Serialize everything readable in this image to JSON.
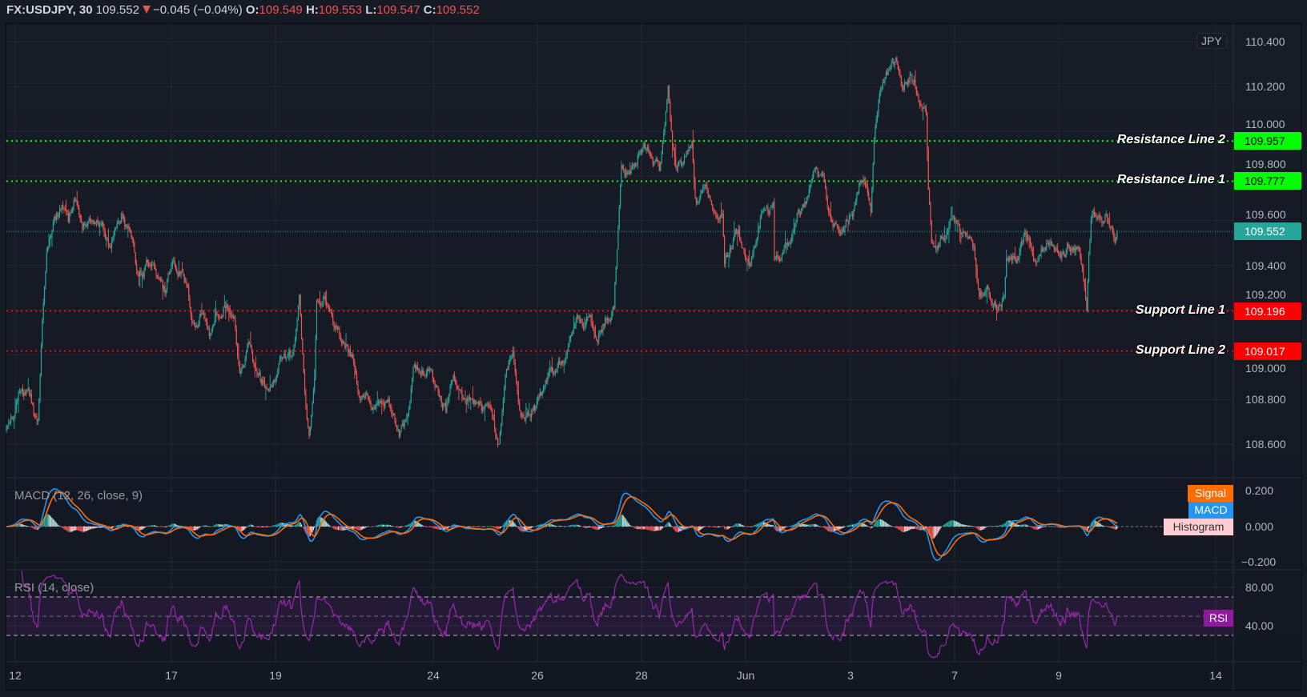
{
  "header": {
    "symbol": "FX:USDJPY, 30",
    "last": "109.552",
    "direction": "down",
    "change": "−0.045 (−0.04%)",
    "o_label": "O:",
    "o": "109.549",
    "h_label": "H:",
    "h": "109.553",
    "l_label": "L:",
    "l": "109.547",
    "c_label": "C:",
    "c": "109.552"
  },
  "price_axis": {
    "currency": "JPY",
    "ticks": [
      "110.400",
      "110.200",
      "110.000",
      "109.800",
      "109.600",
      "109.400",
      "109.200",
      "109.000",
      "108.800",
      "108.600"
    ]
  },
  "current_price": {
    "value": "109.552",
    "color": "#26a69a"
  },
  "levels": [
    {
      "name": "Resistance Line 2",
      "price": "109.957",
      "color": "#00ff00",
      "text_color": "#000000"
    },
    {
      "name": "Resistance Line 1",
      "price": "109.777",
      "color": "#00ff00",
      "text_color": "#000000"
    },
    {
      "name": "Support Line 1",
      "price": "109.196",
      "color": "#ff0000",
      "text_color": "#ffffff"
    },
    {
      "name": "Support Line 2",
      "price": "109.017",
      "color": "#ff0000",
      "text_color": "#ffffff"
    }
  ],
  "macd": {
    "title": "MACD (12, 26, close, 9)",
    "signal_label": "Signal",
    "macd_label": "MACD",
    "histogram_label": "Histogram",
    "axis": [
      "0.200",
      "0.000",
      "−0.200"
    ],
    "colors": {
      "macd": "#2196f3",
      "signal": "#ff6d00",
      "hist_up": "#26a69a",
      "hist_up_fade": "#b2dfdb",
      "hist_down": "#ef5350",
      "hist_down_fade": "#ffcdd2"
    }
  },
  "rsi": {
    "title": "RSI (14, close)",
    "label": "RSI",
    "axis": [
      "80.00",
      "40.00"
    ],
    "upper_band": 70,
    "middle_band": 50,
    "lower_band": 30,
    "color": "#9c27b0"
  },
  "time_axis": [
    "12",
    "17",
    "19",
    "24",
    "26",
    "28",
    "Jun",
    "3",
    "7",
    "9",
    "14"
  ],
  "chart_data": {
    "type": "candlestick",
    "title": "FX:USDJPY, 30",
    "interval": "30",
    "ylim": [
      108.45,
      110.48
    ],
    "macd_ylim": [
      -0.243,
      0.274
    ],
    "rsi_ylim": [
      2.5,
      98.3
    ],
    "grid": true,
    "colors": {
      "up": "#26a69a",
      "down": "#ef5350"
    },
    "approx_close_path": [
      [
        "May 11 20:00",
        108.66
      ],
      [
        "May 12 00:30",
        108.79
      ],
      [
        "May 12 03:00",
        108.88
      ],
      [
        "May 12 07:00",
        108.79
      ],
      [
        "May 12 10:30",
        108.68
      ],
      [
        "May 12 12:30",
        109.18
      ],
      [
        "May 12 14:30",
        109.44
      ],
      [
        "May 12 16:30",
        109.57
      ],
      [
        "May 12 22:00",
        109.67
      ],
      [
        "May 13 00:30",
        109.57
      ],
      [
        "May 13 04:00",
        109.72
      ],
      [
        "May 13 07:00",
        109.57
      ],
      [
        "May 13 11:00",
        109.63
      ],
      [
        "May 13 16:00",
        109.57
      ],
      [
        "May 13 20:00",
        109.44
      ],
      [
        "May 14 01:00",
        109.63
      ],
      [
        "May 14 06:00",
        109.49
      ],
      [
        "May 14 08:30",
        109.33
      ],
      [
        "May 14 15:00",
        109.44
      ],
      [
        "May 14 21:30",
        109.28
      ],
      [
        "May 17 01:00",
        109.44
      ],
      [
        "May 17 06:30",
        109.33
      ],
      [
        "May 17 10:00",
        109.15
      ],
      [
        "May 17 15:00",
        109.2
      ],
      [
        "May 17 17:30",
        109.11
      ],
      [
        "May 18 00:00",
        109.23
      ],
      [
        "May 18 05:00",
        109.18
      ],
      [
        "May 18 07:30",
        108.92
      ],
      [
        "May 18 11:30",
        109.01
      ],
      [
        "May 18 15:00",
        108.92
      ],
      [
        "May 18 19:00",
        108.87
      ],
      [
        "May 19 00:00",
        108.92
      ],
      [
        "May 19 02:30",
        109.02
      ],
      [
        "May 19 07:30",
        108.98
      ],
      [
        "May 19 11:00",
        109.24
      ],
      [
        "May 19 13:30",
        108.85
      ],
      [
        "May 19 15:30",
        108.63
      ],
      [
        "May 19 18:00",
        108.92
      ],
      [
        "May 19 19:00",
        109.24
      ],
      [
        "May 20 00:30",
        109.24
      ],
      [
        "May 20 03:00",
        109.13
      ],
      [
        "May 20 07:30",
        109.05
      ],
      [
        "May 20 12:00",
        108.98
      ],
      [
        "May 20 14:30",
        108.81
      ],
      [
        "May 20 20:30",
        108.78
      ],
      [
        "May 21 00:30",
        108.84
      ],
      [
        "May 21 05:30",
        108.75
      ],
      [
        "May 21 09:00",
        108.66
      ],
      [
        "May 21 13:00",
        108.71
      ],
      [
        "May 21 15:30",
        108.94
      ],
      [
        "May 21 20:30",
        108.92
      ],
      [
        "May 24 00:00",
        108.91
      ],
      [
        "May 24 06:30",
        108.75
      ],
      [
        "May 24 10:00",
        108.94
      ],
      [
        "May 24 15:00",
        108.76
      ],
      [
        "May 24 21:30",
        108.8
      ],
      [
        "May 25 02:30",
        108.72
      ],
      [
        "May 25 07:00",
        108.61
      ],
      [
        "May 25 10:30",
        108.94
      ],
      [
        "May 25 13:30",
        109.03
      ],
      [
        "May 25 17:30",
        108.74
      ],
      [
        "May 26 00:00",
        108.76
      ],
      [
        "May 26 06:30",
        108.88
      ],
      [
        "May 26 13:30",
        109.02
      ],
      [
        "May 26 18:00",
        109.16
      ],
      [
        "May 27 00:30",
        109.18
      ],
      [
        "May 27 04:00",
        109.07
      ],
      [
        "May 27 09:00",
        109.18
      ],
      [
        "May 27 12:00",
        109.24
      ],
      [
        "May 27 13:30",
        109.5
      ],
      [
        "May 27 15:30",
        109.85
      ],
      [
        "May 27 19:30",
        109.78
      ],
      [
        "May 28 00:30",
        109.93
      ],
      [
        "May 28 05:30",
        109.87
      ],
      [
        "May 28 09:00",
        109.83
      ],
      [
        "May 28 12:00",
        110.09
      ],
      [
        "May 28 13:00",
        110.19
      ],
      [
        "May 28 15:00",
        109.93
      ],
      [
        "May 28 17:00",
        109.79
      ],
      [
        "May 28 21:00",
        109.87
      ],
      [
        "May 31 00:00",
        109.93
      ],
      [
        "May 31 01:30",
        109.7
      ],
      [
        "May 31 03:00",
        109.66
      ],
      [
        "May 31 06:30",
        109.75
      ],
      [
        "May 31 09:30",
        109.67
      ],
      [
        "May 31 14:00",
        109.63
      ],
      [
        "May 31 15:00",
        109.41
      ],
      [
        "May 31 17:30",
        109.49
      ],
      [
        "May 31 21:30",
        109.58
      ],
      [
        "Jun 1 00:30",
        109.41
      ],
      [
        "Jun 1 02:30",
        109.4
      ],
      [
        "Jun 1 06:00",
        109.52
      ],
      [
        "Jun 1 08:30",
        109.63
      ],
      [
        "Jun 1 13:30",
        109.67
      ],
      [
        "Jun 1 14:00",
        109.41
      ],
      [
        "Jun 1 17:30",
        109.45
      ],
      [
        "Jun 1 21:00",
        109.49
      ],
      [
        "Jun 2 01:00",
        109.65
      ],
      [
        "Jun 2 05:00",
        109.71
      ],
      [
        "Jun 2 08:30",
        109.87
      ],
      [
        "Jun 2 10:30",
        109.81
      ],
      [
        "Jun 2 13:30",
        109.74
      ],
      [
        "Jun 2 15:00",
        109.63
      ],
      [
        "Jun 2 19:00",
        109.57
      ],
      [
        "Jun 2 22:30",
        109.59
      ],
      [
        "Jun 3 02:00",
        109.65
      ],
      [
        "Jun 3 07:00",
        109.79
      ],
      [
        "Jun 3 10:30",
        109.67
      ],
      [
        "Jun 3 12:00",
        109.98
      ],
      [
        "Jun 3 15:00",
        110.17
      ],
      [
        "Jun 3 17:30",
        110.28
      ],
      [
        "Jun 3 22:30",
        110.29
      ],
      [
        "Jun 4 01:30",
        110.17
      ],
      [
        "Jun 4 05:00",
        110.26
      ],
      [
        "Jun 4 08:30",
        110.16
      ],
      [
        "Jun 4 12:00",
        110.1
      ],
      [
        "Jun 4 13:00",
        109.73
      ],
      [
        "Jun 4 14:30",
        109.49
      ],
      [
        "Jun 4 16:00",
        109.49
      ],
      [
        "Jun 4 20:00",
        109.53
      ],
      [
        "Jun 4 23:30",
        109.58
      ],
      [
        "Jun 7 03:30",
        109.54
      ],
      [
        "Jun 7 07:30",
        109.5
      ],
      [
        "Jun 7 10:00",
        109.44
      ],
      [
        "Jun 7 12:30",
        109.24
      ],
      [
        "Jun 7 16:00",
        109.28
      ],
      [
        "Jun 7 20:00",
        109.24
      ],
      [
        "Jun 8 00:00",
        109.27
      ],
      [
        "Jun 8 01:00",
        109.41
      ],
      [
        "Jun 8 06:30",
        109.44
      ],
      [
        "Jun 8 09:00",
        109.54
      ],
      [
        "Jun 8 14:00",
        109.44
      ],
      [
        "Jun 8 16:30",
        109.5
      ],
      [
        "Jun 8 21:30",
        109.5
      ],
      [
        "Jun 9 01:30",
        109.44
      ],
      [
        "Jun 9 05:00",
        109.49
      ],
      [
        "Jun 9 10:30",
        109.46
      ],
      [
        "Jun 9 12:00",
        109.37
      ],
      [
        "Jun 9 14:00",
        109.23
      ],
      [
        "Jun 9 15:00",
        109.5
      ],
      [
        "Jun 9 16:00",
        109.65
      ],
      [
        "Jun 9 19:00",
        109.6
      ],
      [
        "Jun 9 23:00",
        109.63
      ],
      [
        "Jun 10 01:00",
        109.58
      ],
      [
        "Jun 10 03:00",
        109.54
      ],
      [
        "Jun 10 04:00",
        109.552
      ]
    ]
  }
}
